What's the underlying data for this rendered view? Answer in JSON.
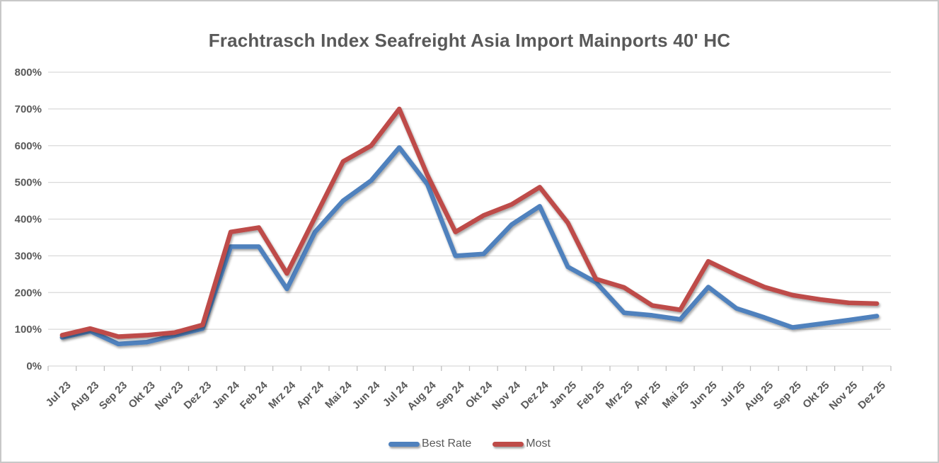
{
  "frame": {
    "background": "#ffffff",
    "border_color": "#c8c8c8"
  },
  "chart_data": {
    "type": "line",
    "title": "Frachtrasch Index Seafreight Asia Import Mainports 40' HC",
    "categories": [
      "Jul 23",
      "Aug 23",
      "Sep 23",
      "Okt 23",
      "Nov 23",
      "Dez 23",
      "Jan 24",
      "Feb 24",
      "Mrz 24",
      "Apr 24",
      "Mai 24",
      "Jun 24",
      "Jul 24",
      "Aug 24",
      "Sep 24",
      "Okt 24",
      "Nov 24",
      "Dez 24",
      "Jan 25",
      "Feb 25",
      "Mrz 25",
      "Apr 25",
      "Mai 25",
      "Jun 25",
      "Jul 25",
      "Aug 25",
      "Sep 25",
      "Okt 25",
      "Nov 25",
      "Dez 25"
    ],
    "series": [
      {
        "name": "Best Rate",
        "color": "#4F81BD",
        "values": [
          78,
          95,
          60,
          65,
          83,
          102,
          325,
          325,
          210,
          365,
          450,
          505,
          595,
          495,
          300,
          305,
          385,
          435,
          270,
          228,
          145,
          138,
          127,
          215,
          157,
          132,
          105,
          115,
          125,
          136
        ]
      },
      {
        "name": "Most",
        "color": "#BE4B48",
        "values": [
          84,
          102,
          80,
          84,
          91,
          112,
          365,
          377,
          252,
          405,
          557,
          600,
          700,
          520,
          365,
          410,
          440,
          487,
          390,
          237,
          214,
          165,
          153,
          285,
          248,
          215,
          193,
          181,
          172,
          170
        ]
      }
    ],
    "xlabel": "",
    "ylabel": "",
    "ylim": [
      0,
      800
    ],
    "y_tick_step": 100,
    "y_tick_suffix": "%",
    "grid": true,
    "legend_position": "bottom",
    "gridline_color": "#d9d9d9",
    "tick_color": "#bfbfbf",
    "axis_text_color": "#595959",
    "title_color": "#595959"
  }
}
